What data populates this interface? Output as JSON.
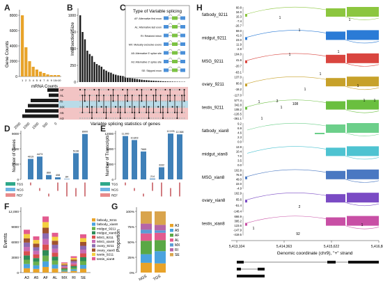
{
  "panels": {
    "A": "A",
    "B": "B",
    "C": "C",
    "D": "D",
    "E": "E",
    "F": "F",
    "G": "G",
    "H": "H"
  },
  "panelA": {
    "ylabel": "Gene Counts",
    "xlabel": "mRNA Counts",
    "yticks": [
      "0",
      "2000",
      "4000",
      "6000",
      "8000"
    ],
    "xticks": [
      "1",
      "2",
      "3",
      "4",
      "5",
      "6",
      "7",
      "8",
      "9",
      "10",
      ">10"
    ],
    "bottom_ticks": [
      "2000",
      "1000",
      "1500",
      "500",
      "0"
    ]
  },
  "panelB": {
    "ylabel": "Intersection Size",
    "yticks": [
      "0",
      "250",
      "500",
      "750",
      "1000"
    ],
    "rows": [
      "AF",
      "AL",
      "RI",
      "MX",
      "A5",
      "A3"
    ],
    "xlabel": "Variable splicing statistics of genes"
  },
  "panelC": {
    "title": "Type of Variable splicing",
    "types": [
      "AF: Alternative first exon",
      "AL: Alternative last exon",
      "RI: Retained intron",
      "MX: Mutually exclusive exons",
      "A5: Alternative 5' splice site",
      "A3: Alternative 3' splice site",
      "SE: Skipped exon"
    ]
  },
  "panelD": {
    "ylabel": "Number of Genes",
    "yticks": [
      "0",
      "3000",
      "6000",
      "9000"
    ],
    "bar_labels": [
      "4019",
      "4473",
      "860",
      "408",
      "84",
      "5136",
      "8900"
    ],
    "rows": [
      "TGS",
      "NGS",
      "REF"
    ]
  },
  "panelE": {
    "ylabel": "Number of Transcripts",
    "yticks": [
      "0",
      "4000",
      "8000",
      "12000"
    ],
    "bar_labels": [
      "11,900",
      "10,803",
      "7665",
      "214",
      "3332",
      "12,578",
      "12,368"
    ],
    "rows": [
      "TGS",
      "NGS",
      "REF"
    ]
  },
  "panelF": {
    "ylabel": "Events",
    "yticks": [
      "0",
      "3000",
      "6000",
      "9000",
      "12,000"
    ],
    "categories": [
      "A3",
      "A5",
      "AF",
      "AL",
      "MX",
      "RI",
      "SE"
    ],
    "legend": [
      "fatbody_9211",
      "fatbody_xian8",
      "midgut_9211",
      "midgut_xian8",
      "MSG_9211",
      "MSG_xian8",
      "ovary_9211",
      "ovary_xian8",
      "testis_9211",
      "testis_xian8"
    ]
  },
  "panelG": {
    "ylabel": "Proportion",
    "yticks": [
      "0%",
      "25%",
      "50%",
      "75%",
      "100%"
    ],
    "categories": [
      "NGS",
      "TGS"
    ],
    "legend": [
      "A3",
      "A5",
      "AF",
      "AL",
      "MX",
      "RI",
      "SE"
    ]
  },
  "panelH": {
    "tracks": [
      {
        "name": "fatbody_9211",
        "ticks": [
          "60.8",
          "34.0",
          "15.3",
          "-7.4",
          "-26.7"
        ],
        "color": "#8cc63f"
      },
      {
        "name": "midgut_9211",
        "ticks": [
          "59.0",
          "41.0",
          "23.0",
          "11.9",
          "-2.8"
        ],
        "color": "#2b7bd6"
      },
      {
        "name": "MSG_9211",
        "ticks": [
          "104.0",
          "41.6",
          "-20.7",
          "-63.1"
        ],
        "color": "#d9453f"
      },
      {
        "name": "ovary_9211",
        "ticks": [
          "137.0",
          "80.6",
          "-18.2",
          "-117.0"
        ],
        "color": "#c7a12a"
      },
      {
        "name": "testis_9211",
        "ticks": [
          "577.4",
          "342.8",
          "108.2",
          "-126.5",
          "-361.1"
        ],
        "color": "#6abf3f"
      },
      {
        "name": "fatbody_xian8",
        "ticks": [
          "9.2",
          "6.9",
          "4.6",
          "2.3",
          "0.0"
        ],
        "color": "#6ccf8a"
      },
      {
        "name": "midgut_xian8",
        "ticks": [
          "13.9",
          "10.4",
          "7.0",
          "3.5",
          "0.0"
        ],
        "color": "#4ec3d1"
      },
      {
        "name": "MSG_xian8",
        "ticks": [
          "102.8",
          "76.9",
          "49.0",
          "22.0",
          "-4.9"
        ],
        "color": "#4a78c2"
      },
      {
        "name": "ovary_xian8",
        "ticks": [
          "162.9",
          "65.6",
          "-51.4",
          "-148.4"
        ],
        "color": "#7a4bc4"
      },
      {
        "name": "testis_xian8",
        "ticks": [
          "666.9",
          "395.2",
          "123.6",
          "-147.9",
          "-419.5"
        ],
        "color": "#c84fa5"
      }
    ],
    "xticks": [
      "5,413,104",
      "5,414,363",
      "5,415,622",
      "5,416,882"
    ],
    "xlabel": "Genomic coordinate (chr9), \"+\" strand",
    "junction_labels": [
      "1",
      "1",
      "1",
      "1",
      "1",
      "1",
      "1",
      "1",
      "1",
      "3",
      "1",
      "108",
      "1",
      "1",
      "1",
      "2",
      "92",
      "1",
      "1"
    ]
  },
  "colors": {
    "gold": "#e8a329",
    "steel": "#3f80b8",
    "black": "#1a1a1a",
    "pink": "#f2c4c4",
    "blue_band": "#b9dbe8",
    "tgs": "#2ea88a",
    "ngs": "#6fb4e4",
    "ref": "#e88b8b"
  }
}
